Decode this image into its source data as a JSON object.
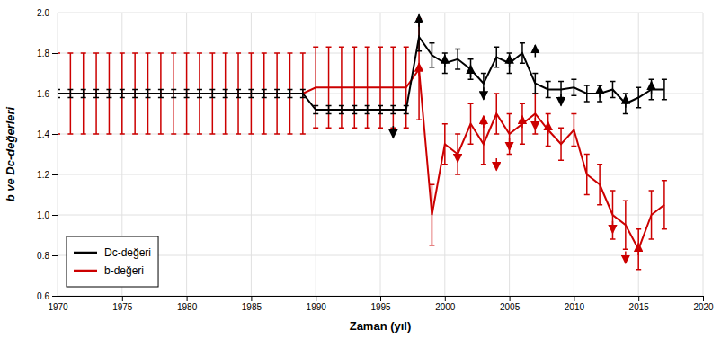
{
  "chart_data": {
    "type": "line",
    "xlabel": "Zaman (yıl)",
    "ylabel": "b ve Dc-değerleri",
    "xlim": [
      1970,
      2020
    ],
    "ylim": [
      0.6,
      2.0
    ],
    "xticks": [
      1970,
      1975,
      1980,
      1985,
      1990,
      1995,
      2000,
      2005,
      2010,
      2015,
      2020
    ],
    "yticks": [
      0.6,
      0.8,
      {
        "value": 1.0,
        "label": "1.0"
      },
      1.2,
      1.4,
      1.6,
      1.8,
      {
        "value": 2.0,
        "label": "2.0"
      }
    ],
    "grid": true,
    "legend": "lower left",
    "x": [
      1970,
      1971,
      1972,
      1973,
      1974,
      1975,
      1976,
      1977,
      1978,
      1979,
      1980,
      1981,
      1982,
      1983,
      1984,
      1985,
      1986,
      1987,
      1988,
      1989,
      1990,
      1991,
      1992,
      1993,
      1994,
      1995,
      1996,
      1997,
      1998,
      1999,
      2000,
      2001,
      2002,
      2003,
      2004,
      2005,
      2006,
      2007,
      2008,
      2009,
      2010,
      2011,
      2012,
      2013,
      2014,
      2015,
      2016,
      2017
    ],
    "series": [
      {
        "name": "Dc-değeri",
        "color": "#000000",
        "values": [
          1.6,
          1.6,
          1.6,
          1.6,
          1.6,
          1.6,
          1.6,
          1.6,
          1.6,
          1.6,
          1.6,
          1.6,
          1.6,
          1.6,
          1.6,
          1.6,
          1.6,
          1.6,
          1.6,
          1.6,
          1.52,
          1.52,
          1.52,
          1.52,
          1.52,
          1.52,
          1.52,
          1.52,
          1.88,
          1.79,
          1.75,
          1.77,
          1.72,
          1.65,
          1.78,
          1.75,
          1.8,
          1.65,
          1.62,
          1.62,
          1.63,
          1.6,
          1.6,
          1.62,
          1.55,
          1.58,
          1.62,
          1.62
        ],
        "errors": [
          0.02,
          0.02,
          0.02,
          0.02,
          0.02,
          0.02,
          0.02,
          0.02,
          0.02,
          0.02,
          0.02,
          0.02,
          0.02,
          0.02,
          0.02,
          0.02,
          0.02,
          0.02,
          0.02,
          0.02,
          0.02,
          0.02,
          0.02,
          0.02,
          0.02,
          0.02,
          0.02,
          0.02,
          0.07,
          0.06,
          0.05,
          0.05,
          0.05,
          0.05,
          0.05,
          0.05,
          0.05,
          0.05,
          0.04,
          0.04,
          0.04,
          0.04,
          0.04,
          0.04,
          0.05,
          0.05,
          0.05,
          0.05
        ],
        "arrows": [
          {
            "x": 1996,
            "y": 1.44,
            "y_end": 1.38
          },
          {
            "x": 1998,
            "y": 1.93,
            "y_end": 1.99
          },
          {
            "x": 2000,
            "y": 1.73,
            "y_end": 1.79
          },
          {
            "x": 2002,
            "y": 1.68,
            "y_end": 1.74
          },
          {
            "x": 2003,
            "y": 1.63,
            "y_end": 1.57
          },
          {
            "x": 2005,
            "y": 1.73,
            "y_end": 1.79
          },
          {
            "x": 2007,
            "y": 1.78,
            "y_end": 1.84
          },
          {
            "x": 2009,
            "y": 1.6,
            "y_end": 1.54
          },
          {
            "x": 2012,
            "y": 1.58,
            "y_end": 1.64
          },
          {
            "x": 2014,
            "y": 1.53,
            "y_end": 1.59
          },
          {
            "x": 2016,
            "y": 1.6,
            "y_end": 1.66
          }
        ]
      },
      {
        "name": "b-değeri",
        "color": "#cc0000",
        "values": [
          1.6,
          1.6,
          1.6,
          1.6,
          1.6,
          1.6,
          1.6,
          1.6,
          1.6,
          1.6,
          1.6,
          1.6,
          1.6,
          1.6,
          1.6,
          1.6,
          1.6,
          1.6,
          1.6,
          1.6,
          1.63,
          1.63,
          1.63,
          1.63,
          1.63,
          1.63,
          1.63,
          1.63,
          1.72,
          1.0,
          1.35,
          1.3,
          1.45,
          1.35,
          1.5,
          1.4,
          1.45,
          1.5,
          1.42,
          1.35,
          1.42,
          1.2,
          1.15,
          1.0,
          0.95,
          0.83,
          1.0,
          1.05
        ],
        "errors": [
          0.2,
          0.2,
          0.2,
          0.2,
          0.2,
          0.2,
          0.2,
          0.2,
          0.2,
          0.2,
          0.2,
          0.2,
          0.2,
          0.2,
          0.2,
          0.2,
          0.2,
          0.2,
          0.2,
          0.2,
          0.2,
          0.2,
          0.2,
          0.2,
          0.2,
          0.2,
          0.2,
          0.2,
          0.25,
          0.15,
          0.1,
          0.1,
          0.1,
          0.1,
          0.1,
          0.1,
          0.1,
          0.1,
          0.08,
          0.08,
          0.08,
          0.1,
          0.1,
          0.12,
          0.12,
          0.1,
          0.12,
          0.12
        ],
        "arrows": [
          {
            "x": 1998,
            "y": 1.69,
            "y_end": 1.75
          },
          {
            "x": 2001,
            "y": 1.32,
            "y_end": 1.26
          },
          {
            "x": 2003,
            "y": 1.43,
            "y_end": 1.49
          },
          {
            "x": 2004,
            "y": 1.28,
            "y_end": 1.22
          },
          {
            "x": 2005,
            "y": 1.38,
            "y_end": 1.32
          },
          {
            "x": 2006,
            "y": 1.43,
            "y_end": 1.49
          },
          {
            "x": 2007,
            "y": 1.48,
            "y_end": 1.42
          },
          {
            "x": 2008,
            "y": 1.4,
            "y_end": 1.46
          },
          {
            "x": 2013,
            "y": 0.97,
            "y_end": 0.91
          },
          {
            "x": 2014,
            "y": 0.82,
            "y_end": 0.76
          },
          {
            "x": 2015,
            "y": 0.8,
            "y_end": 0.86
          }
        ]
      }
    ]
  }
}
